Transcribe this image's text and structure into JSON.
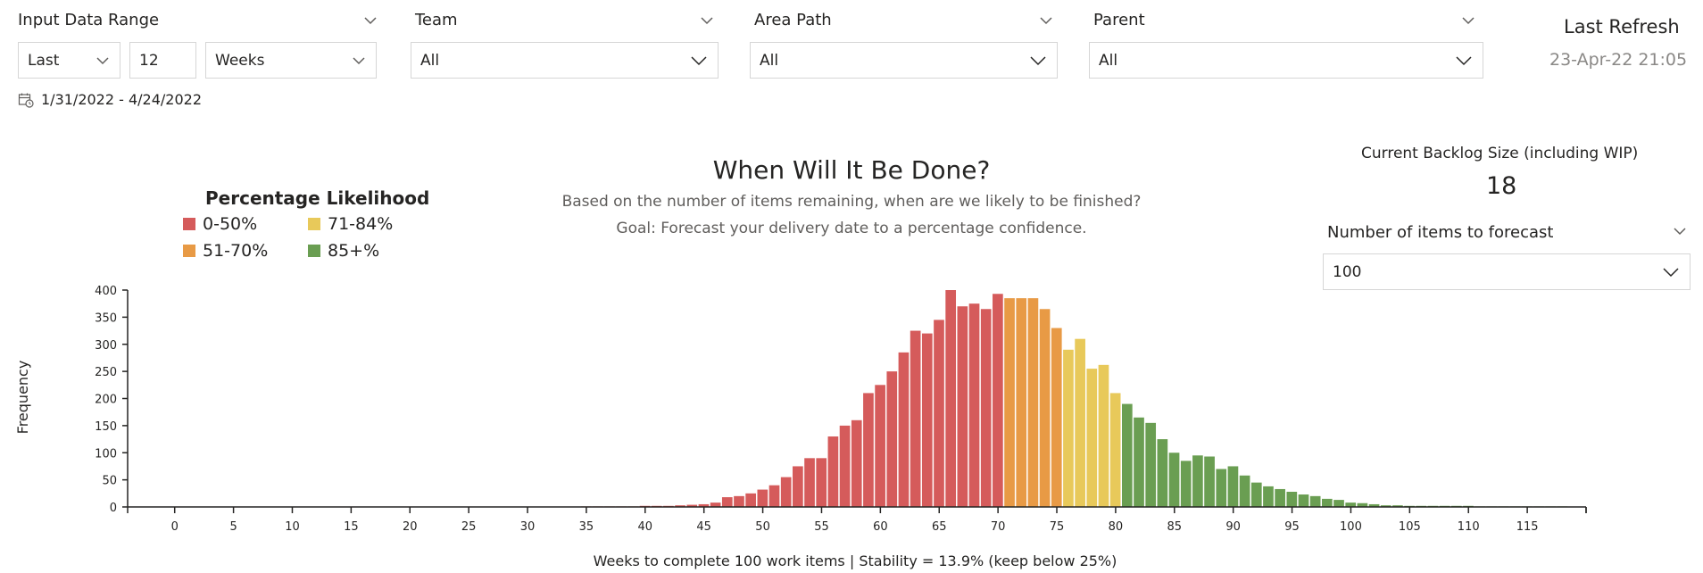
{
  "filters": {
    "input_range": {
      "title": "Input Data Range",
      "mode": "Last",
      "count": "12",
      "unit": "Weeks"
    },
    "team": {
      "title": "Team",
      "value": "All"
    },
    "area_path": {
      "title": "Area Path",
      "value": "All"
    },
    "parent": {
      "title": "Parent",
      "value": "All"
    },
    "date_range": "1/31/2022 - 4/24/2022"
  },
  "refresh": {
    "title": "Last Refresh",
    "value": "23-Apr-22 21:05"
  },
  "backlog": {
    "title": "Current Backlog Size (including WIP)",
    "value": "18"
  },
  "forecast": {
    "title": "Number of items to forecast",
    "value": "100"
  },
  "legend": {
    "title": "Percentage Likelihood",
    "items": [
      {
        "label": "0-50%",
        "color": "#d55b5b"
      },
      {
        "label": "71-84%",
        "color": "#e8c95a"
      },
      {
        "label": "51-70%",
        "color": "#e89a45"
      },
      {
        "label": "85+%",
        "color": "#6a9e52"
      }
    ]
  },
  "chart_data": {
    "type": "bar",
    "title": "When Will It Be Done?",
    "subtitle": [
      "Based on the number of items remaining, when are we likely to be finished?",
      "Goal: Forecast your delivery date to a percentage confidence."
    ],
    "xlabel": "Weeks to complete 100 work items | Stability = 13.9% (keep below 25%)",
    "ylabel": "Frequency",
    "xlim": [
      -4,
      120
    ],
    "ylim": [
      0,
      400
    ],
    "xticks": [
      0,
      5,
      10,
      15,
      20,
      25,
      30,
      35,
      40,
      45,
      50,
      55,
      60,
      65,
      70,
      75,
      80,
      85,
      90,
      95,
      100,
      105,
      110,
      115
    ],
    "yticks": [
      0,
      50,
      100,
      150,
      200,
      250,
      300,
      350,
      400
    ],
    "colors": {
      "band_0_50": "#d55b5b",
      "band_51_70": "#e89a45",
      "band_71_84": "#e8c95a",
      "band_85_plus": "#6a9e52"
    },
    "x": [
      35,
      36,
      37,
      38,
      39,
      40,
      41,
      42,
      43,
      44,
      45,
      46,
      47,
      48,
      49,
      50,
      51,
      52,
      53,
      54,
      55,
      56,
      57,
      58,
      59,
      60,
      61,
      62,
      63,
      64,
      65,
      66,
      67,
      68,
      69,
      70,
      71,
      72,
      73,
      74,
      75,
      76,
      77,
      78,
      79,
      80,
      81,
      82,
      83,
      84,
      85,
      86,
      87,
      88,
      89,
      90,
      91,
      92,
      93,
      94,
      95,
      96,
      97,
      98,
      99,
      100,
      101,
      102,
      103,
      104,
      105,
      106,
      107,
      108,
      109,
      110,
      111,
      112,
      113,
      114,
      115,
      116,
      117,
      118
    ],
    "values": [
      1,
      1,
      1,
      1,
      1,
      2,
      2,
      2,
      3,
      4,
      5,
      8,
      18,
      20,
      25,
      32,
      40,
      55,
      75,
      90,
      90,
      130,
      150,
      160,
      210,
      225,
      250,
      285,
      325,
      320,
      345,
      400,
      370,
      375,
      365,
      393,
      385,
      385,
      385,
      365,
      330,
      290,
      310,
      255,
      262,
      210,
      190,
      165,
      155,
      125,
      100,
      85,
      95,
      93,
      70,
      75,
      58,
      45,
      38,
      33,
      28,
      23,
      20,
      15,
      13,
      8,
      7,
      5,
      3,
      3,
      2,
      2,
      2,
      2,
      2,
      2,
      1,
      1,
      1,
      1,
      1,
      1,
      1,
      1
    ],
    "bands": [
      {
        "from": 35,
        "to": 70,
        "band": "band_0_50"
      },
      {
        "from": 71,
        "to": 75,
        "band": "band_51_70"
      },
      {
        "from": 76,
        "to": 80,
        "band": "band_71_84"
      },
      {
        "from": 81,
        "to": 118,
        "band": "band_85_plus"
      }
    ]
  }
}
